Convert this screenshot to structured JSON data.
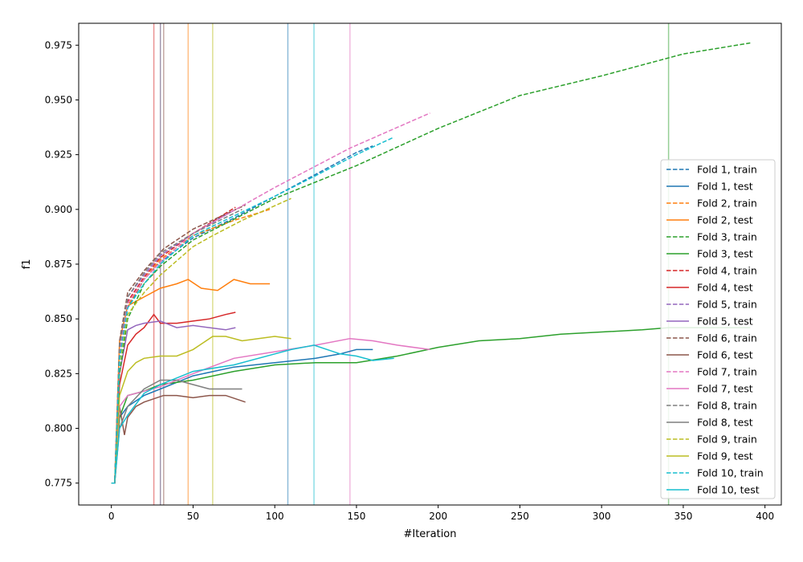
{
  "chart_data": {
    "type": "line",
    "title": "",
    "xlabel": "#Iteration",
    "ylabel": "f1",
    "xlim": [
      -20,
      410
    ],
    "ylim": [
      0.765,
      0.985
    ],
    "x_ticks": [
      "0",
      "50",
      "100",
      "150",
      "200",
      "250",
      "300",
      "350",
      "400"
    ],
    "y_ticks": [
      "0.775",
      "0.800",
      "0.825",
      "0.850",
      "0.875",
      "0.900",
      "0.925",
      "0.950",
      "0.975"
    ],
    "legend_position": "center-right",
    "grid": false,
    "colors": [
      "#1f77b4",
      "#ff7f0e",
      "#2ca02c",
      "#d62728",
      "#9467bd",
      "#8c564b",
      "#e377c2",
      "#7f7f7f",
      "#bcbd22",
      "#17becf"
    ],
    "folds": [
      {
        "train_label": "Fold 1, train",
        "test_label": "Fold 1, test",
        "best_iteration": 108,
        "train": {
          "x": [
            0,
            2,
            5,
            10,
            20,
            30,
            50,
            75,
            100,
            125,
            150,
            160
          ],
          "y": [
            0.775,
            0.775,
            0.83,
            0.855,
            0.868,
            0.876,
            0.887,
            0.896,
            0.906,
            0.916,
            0.926,
            0.929
          ]
        },
        "test": {
          "x": [
            0,
            2,
            5,
            10,
            20,
            30,
            50,
            75,
            100,
            125,
            140,
            150,
            160
          ],
          "y": [
            0.775,
            0.775,
            0.805,
            0.81,
            0.815,
            0.818,
            0.824,
            0.828,
            0.83,
            0.832,
            0.834,
            0.836,
            0.836
          ]
        }
      },
      {
        "train_label": "Fold 2, train",
        "test_label": "Fold 2, test",
        "best_iteration": 47,
        "train": {
          "x": [
            0,
            2,
            5,
            10,
            20,
            30,
            50,
            75,
            97
          ],
          "y": [
            0.775,
            0.775,
            0.83,
            0.856,
            0.868,
            0.877,
            0.888,
            0.895,
            0.9
          ]
        },
        "test": {
          "x": [
            0,
            2,
            5,
            10,
            15,
            20,
            30,
            40,
            47,
            55,
            65,
            75,
            85,
            97
          ],
          "y": [
            0.775,
            0.775,
            0.84,
            0.856,
            0.858,
            0.86,
            0.864,
            0.866,
            0.868,
            0.864,
            0.863,
            0.868,
            0.866,
            0.866
          ]
        }
      },
      {
        "train_label": "Fold 3, train",
        "test_label": "Fold 3, test",
        "best_iteration": 341,
        "train": {
          "x": [
            0,
            2,
            5,
            10,
            20,
            30,
            50,
            100,
            150,
            200,
            250,
            300,
            350,
            391
          ],
          "y": [
            0.775,
            0.775,
            0.825,
            0.85,
            0.866,
            0.874,
            0.886,
            0.905,
            0.92,
            0.937,
            0.952,
            0.961,
            0.971,
            0.976
          ]
        },
        "test": {
          "x": [
            0,
            2,
            5,
            10,
            20,
            30,
            50,
            75,
            100,
            125,
            150,
            175,
            200,
            225,
            250,
            275,
            300,
            325,
            341,
            360,
            391
          ],
          "y": [
            0.775,
            0.775,
            0.805,
            0.815,
            0.817,
            0.82,
            0.822,
            0.826,
            0.829,
            0.83,
            0.83,
            0.833,
            0.837,
            0.84,
            0.841,
            0.843,
            0.844,
            0.845,
            0.846,
            0.846,
            0.846
          ]
        }
      },
      {
        "train_label": "Fold 4, train",
        "test_label": "Fold 4, test",
        "best_iteration": 26,
        "train": {
          "x": [
            0,
            2,
            5,
            10,
            20,
            30,
            50,
            76
          ],
          "y": [
            0.775,
            0.775,
            0.835,
            0.858,
            0.869,
            0.878,
            0.889,
            0.901
          ]
        },
        "test": {
          "x": [
            0,
            2,
            5,
            10,
            15,
            20,
            26,
            30,
            40,
            50,
            60,
            70,
            76
          ],
          "y": [
            0.775,
            0.775,
            0.82,
            0.838,
            0.843,
            0.846,
            0.852,
            0.848,
            0.848,
            0.849,
            0.85,
            0.852,
            0.853
          ]
        }
      },
      {
        "train_label": "Fold 5, train",
        "test_label": "Fold 5, test",
        "best_iteration": 30,
        "train": {
          "x": [
            0,
            2,
            5,
            10,
            20,
            30,
            50,
            76
          ],
          "y": [
            0.775,
            0.775,
            0.835,
            0.86,
            0.87,
            0.879,
            0.889,
            0.9
          ]
        },
        "test": {
          "x": [
            0,
            2,
            5,
            10,
            15,
            20,
            30,
            40,
            50,
            60,
            70,
            76
          ],
          "y": [
            0.775,
            0.775,
            0.825,
            0.845,
            0.847,
            0.848,
            0.849,
            0.846,
            0.847,
            0.846,
            0.845,
            0.846
          ]
        }
      },
      {
        "train_label": "Fold 6, train",
        "test_label": "Fold 6, test",
        "best_iteration": 32,
        "train": {
          "x": [
            0,
            2,
            5,
            10,
            20,
            32,
            50,
            82
          ],
          "y": [
            0.775,
            0.775,
            0.84,
            0.862,
            0.872,
            0.882,
            0.891,
            0.902
          ]
        },
        "test": {
          "x": [
            0,
            2,
            5,
            8,
            10,
            15,
            20,
            32,
            40,
            50,
            60,
            70,
            82
          ],
          "y": [
            0.775,
            0.775,
            0.81,
            0.797,
            0.805,
            0.81,
            0.812,
            0.815,
            0.815,
            0.814,
            0.815,
            0.815,
            0.812
          ]
        }
      },
      {
        "train_label": "Fold 7, train",
        "test_label": "Fold 7, test",
        "best_iteration": 146,
        "train": {
          "x": [
            0,
            2,
            5,
            10,
            20,
            30,
            50,
            100,
            146,
            195
          ],
          "y": [
            0.775,
            0.775,
            0.833,
            0.857,
            0.868,
            0.876,
            0.889,
            0.91,
            0.928,
            0.944
          ]
        },
        "test": {
          "x": [
            0,
            2,
            5,
            10,
            20,
            30,
            50,
            75,
            100,
            125,
            146,
            160,
            175,
            195
          ],
          "y": [
            0.775,
            0.775,
            0.81,
            0.815,
            0.817,
            0.819,
            0.825,
            0.832,
            0.835,
            0.838,
            0.841,
            0.84,
            0.838,
            0.836
          ]
        }
      },
      {
        "train_label": "Fold 8, train",
        "test_label": "Fold 8, test",
        "best_iteration": 30,
        "train": {
          "x": [
            0,
            2,
            5,
            10,
            20,
            30,
            50,
            80
          ],
          "y": [
            0.775,
            0.775,
            0.838,
            0.86,
            0.871,
            0.88,
            0.889,
            0.9
          ]
        },
        "test": {
          "x": [
            0,
            2,
            5,
            10,
            20,
            30,
            40,
            50,
            60,
            70,
            80
          ],
          "y": [
            0.775,
            0.775,
            0.8,
            0.81,
            0.818,
            0.822,
            0.822,
            0.82,
            0.818,
            0.818,
            0.818
          ]
        }
      },
      {
        "train_label": "Fold 9, train",
        "test_label": "Fold 9, test",
        "best_iteration": 62,
        "train": {
          "x": [
            0,
            2,
            5,
            10,
            20,
            30,
            50,
            62,
            80,
            110
          ],
          "y": [
            0.775,
            0.775,
            0.83,
            0.852,
            0.862,
            0.87,
            0.883,
            0.888,
            0.895,
            0.905
          ]
        },
        "test": {
          "x": [
            0,
            2,
            5,
            10,
            15,
            20,
            30,
            40,
            50,
            62,
            70,
            80,
            90,
            100,
            110
          ],
          "y": [
            0.775,
            0.775,
            0.815,
            0.826,
            0.83,
            0.832,
            0.833,
            0.833,
            0.836,
            0.842,
            0.842,
            0.84,
            0.841,
            0.842,
            0.841
          ]
        }
      },
      {
        "train_label": "Fold 10, train",
        "test_label": "Fold 10, test",
        "best_iteration": 124,
        "train": {
          "x": [
            0,
            2,
            5,
            10,
            20,
            30,
            50,
            100,
            124,
            150,
            173
          ],
          "y": [
            0.775,
            0.775,
            0.832,
            0.855,
            0.866,
            0.875,
            0.888,
            0.906,
            0.915,
            0.925,
            0.933
          ]
        },
        "test": {
          "x": [
            0,
            2,
            5,
            10,
            20,
            30,
            50,
            75,
            100,
            110,
            124,
            140,
            150,
            160,
            173
          ],
          "y": [
            0.775,
            0.775,
            0.8,
            0.806,
            0.816,
            0.82,
            0.826,
            0.829,
            0.834,
            0.836,
            0.838,
            0.834,
            0.833,
            0.831,
            0.832
          ]
        }
      }
    ]
  }
}
